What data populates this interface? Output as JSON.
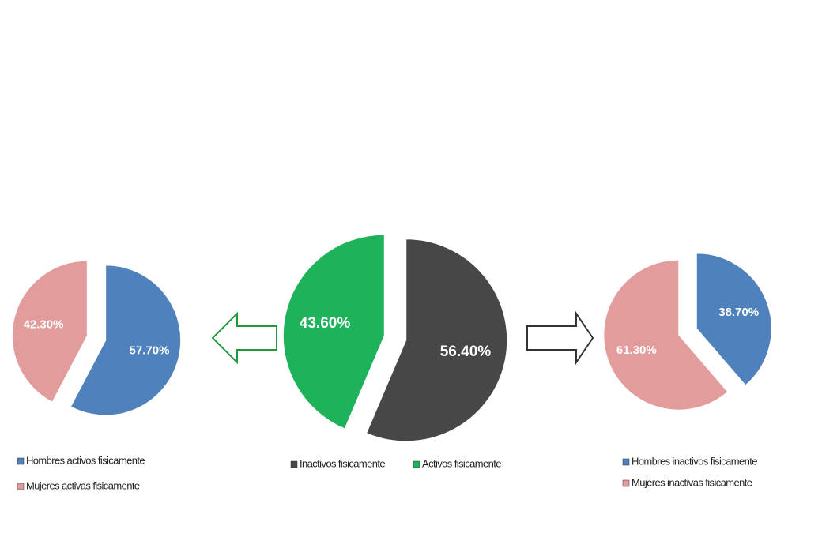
{
  "chart_data": [
    {
      "type": "pie",
      "categories": [
        "Hombres activos fisicamente",
        "Mujeres activas fisicamente"
      ],
      "values": [
        57.7,
        42.3
      ],
      "value_labels": [
        "57.70%",
        "42.30%"
      ],
      "colors": [
        "#4f81bd",
        "#e39c9c"
      ]
    },
    {
      "type": "pie",
      "categories": [
        "Inactivos fisicamente",
        "Activos fisicamente"
      ],
      "values": [
        56.4,
        43.6
      ],
      "value_labels": [
        "56.40%",
        "43.60%"
      ],
      "colors": [
        "#474747",
        "#1eb35a"
      ]
    },
    {
      "type": "pie",
      "categories": [
        "Hombres inactivos fisicamente",
        "Mujeres inactivas fisicamente"
      ],
      "values": [
        38.7,
        61.3
      ],
      "value_labels": [
        "38.70%",
        "61.30%"
      ],
      "colors": [
        "#4f81bd",
        "#e39c9c"
      ]
    }
  ]
}
